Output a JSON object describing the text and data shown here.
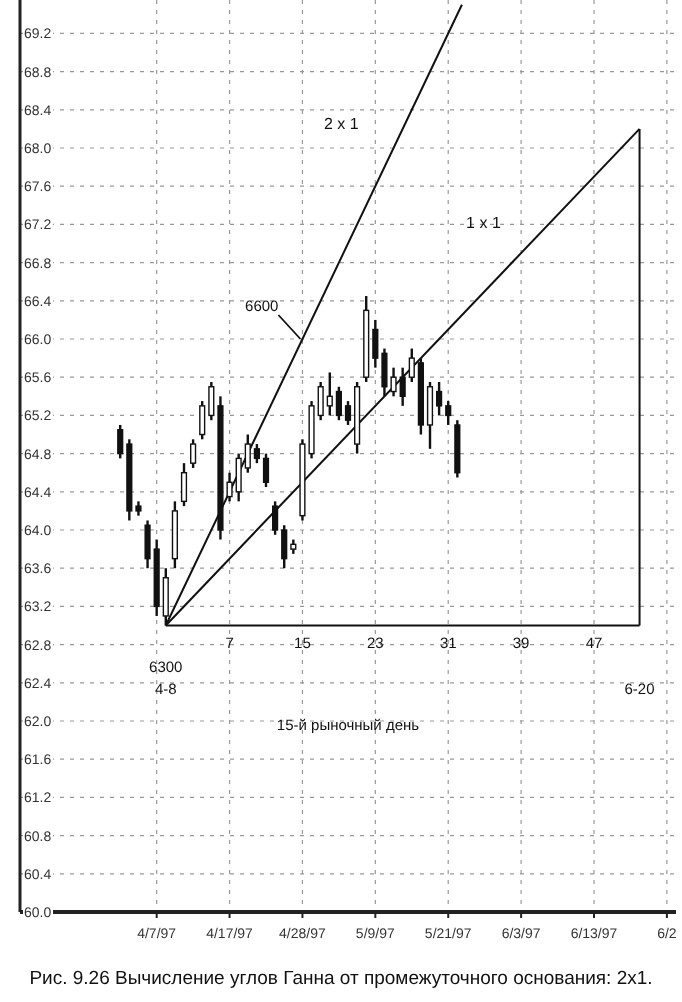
{
  "chart_data": {
    "type": "candlestick",
    "title": "Рис. 9.26  Вычисление углов Ганна от промежуточного основания: 2x1.",
    "color": "#111111",
    "x": [
      -5,
      -4,
      -3,
      -2,
      -1,
      0,
      1,
      2,
      3,
      4,
      5,
      6,
      7,
      8,
      9,
      10,
      11,
      12,
      13,
      14,
      15,
      16,
      17,
      18,
      19,
      20,
      21,
      22,
      23,
      24,
      25,
      26,
      27,
      28,
      29,
      30,
      31,
      32
    ],
    "ohlc": [
      [
        65.05,
        65.1,
        64.75,
        64.8
      ],
      [
        64.9,
        64.95,
        64.1,
        64.2
      ],
      [
        64.25,
        64.3,
        64.15,
        64.2
      ],
      [
        64.05,
        64.1,
        63.6,
        63.7
      ],
      [
        63.8,
        63.9,
        63.1,
        63.2
      ],
      [
        63.1,
        63.6,
        63.0,
        63.5
      ],
      [
        63.7,
        64.3,
        63.6,
        64.2
      ],
      [
        64.3,
        64.7,
        64.25,
        64.6
      ],
      [
        64.7,
        64.95,
        64.65,
        64.9
      ],
      [
        65.0,
        65.35,
        64.95,
        65.3
      ],
      [
        65.2,
        65.55,
        65.15,
        65.5
      ],
      [
        65.3,
        65.4,
        63.9,
        64.0
      ],
      [
        64.35,
        64.6,
        64.3,
        64.5
      ],
      [
        64.4,
        64.8,
        64.3,
        64.75
      ],
      [
        64.65,
        65.0,
        64.6,
        64.9
      ],
      [
        64.85,
        64.9,
        64.7,
        64.75
      ],
      [
        64.75,
        64.8,
        64.45,
        64.5
      ],
      [
        64.25,
        64.3,
        63.95,
        64.0
      ],
      [
        64.0,
        64.05,
        63.6,
        63.7
      ],
      [
        63.8,
        63.9,
        63.75,
        63.85
      ],
      [
        64.15,
        64.95,
        64.1,
        64.9
      ],
      [
        64.8,
        65.35,
        64.75,
        65.3
      ],
      [
        65.2,
        65.55,
        65.15,
        65.5
      ],
      [
        65.3,
        65.65,
        65.2,
        65.4
      ],
      [
        65.45,
        65.5,
        65.15,
        65.2
      ],
      [
        65.3,
        65.35,
        65.1,
        65.15
      ],
      [
        64.9,
        65.55,
        64.8,
        65.5
      ],
      [
        65.6,
        66.45,
        65.55,
        66.3
      ],
      [
        66.1,
        66.2,
        65.7,
        65.8
      ],
      [
        65.85,
        65.9,
        65.4,
        65.5
      ],
      [
        65.45,
        65.7,
        65.4,
        65.6
      ],
      [
        65.6,
        65.7,
        65.3,
        65.4
      ],
      [
        65.6,
        65.9,
        65.55,
        65.8
      ],
      [
        65.75,
        65.8,
        65.0,
        65.1
      ],
      [
        65.1,
        65.55,
        64.85,
        65.5
      ],
      [
        65.45,
        65.55,
        65.2,
        65.3
      ],
      [
        65.3,
        65.35,
        65.1,
        65.2
      ],
      [
        65.1,
        65.15,
        64.55,
        64.6
      ]
    ],
    "series": [
      {
        "type": "line",
        "name": "2 x 1",
        "color": "#111111",
        "x": [
          0,
          32.5
        ],
        "values": [
          63.0,
          69.5
        ]
      },
      {
        "type": "line",
        "name": "1 x 1",
        "color": "#111111",
        "x": [
          0,
          52
        ],
        "values": [
          63.0,
          68.2
        ]
      },
      {
        "type": "line",
        "color": "#111111",
        "x": [
          0,
          52
        ],
        "values": [
          63.0,
          63.0
        ]
      },
      {
        "type": "line",
        "color": "#111111",
        "x": [
          52,
          52
        ],
        "values": [
          63.0,
          68.2
        ]
      }
    ],
    "xlim": [
      -16,
      56
    ],
    "ylim": [
      60,
      69.55
    ],
    "xticks": [
      7,
      15,
      23,
      31,
      39,
      47
    ],
    "yticks": [
      {
        "value": 60,
        "label": "60.0"
      },
      {
        "value": 60.4,
        "label": "60.4"
      },
      {
        "value": 60.8,
        "label": "60.8"
      },
      {
        "value": 61.2,
        "label": "61.2"
      },
      {
        "value": 61.6,
        "label": "61.6"
      },
      {
        "value": 62,
        "label": "62.0"
      },
      {
        "value": 62.4,
        "label": "62.4"
      },
      {
        "value": 62.8,
        "label": "62.8"
      },
      {
        "value": 63.2,
        "label": "63.2"
      },
      {
        "value": 63.6,
        "label": "63.6"
      },
      {
        "value": 64,
        "label": "64.0"
      },
      {
        "value": 64.4,
        "label": "64.4"
      },
      {
        "value": 64.8,
        "label": "64.8"
      },
      {
        "value": 65.2,
        "label": "65.2"
      },
      {
        "value": 65.6,
        "label": "65.6"
      },
      {
        "value": 66,
        "label": "66.0"
      },
      {
        "value": 66.4,
        "label": "66.4"
      },
      {
        "value": 66.8,
        "label": "66.8"
      },
      {
        "value": 67.2,
        "label": "67.2"
      },
      {
        "value": 67.6,
        "label": "67.6"
      },
      {
        "value": 68,
        "label": "68.0"
      },
      {
        "value": 68.4,
        "label": "68.4"
      },
      {
        "value": 68.8,
        "label": "68.8"
      },
      {
        "value": 69.2,
        "label": "69.2"
      }
    ],
    "grid": true,
    "legend": false,
    "annotations": [
      {
        "text": "6600",
        "x": 15,
        "y": 66.0
      },
      {
        "text": "6300",
        "x": 0,
        "y": 63.0
      },
      "4-8",
      "6-20",
      "15-й рыночный день",
      "4/7/97",
      "4/17/97",
      "4/28/97",
      "5/9/97",
      "5/21/97",
      "6/3/97",
      "6/13/97",
      "6/2"
    ]
  }
}
